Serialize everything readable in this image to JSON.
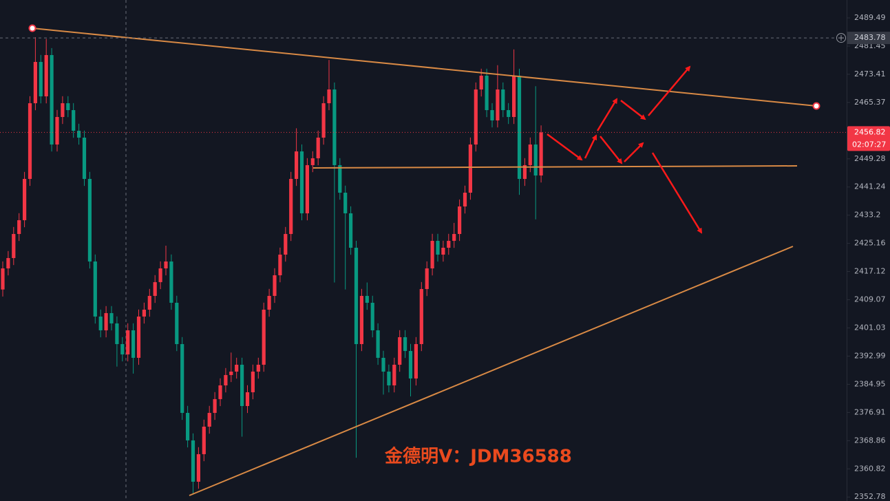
{
  "chart_data": {
    "type": "candlestick",
    "ylim": [
      2351.65,
      2494.6
    ],
    "yticks": [
      2489.49,
      2481.45,
      2473.41,
      2465.37,
      2449.28,
      2441.24,
      2433.2,
      2425.16,
      2417.12,
      2409.07,
      2401.03,
      2392.99,
      2384.95,
      2376.91,
      2368.86,
      2360.82,
      2352.78
    ],
    "grid": false,
    "up_color": "#f23645",
    "down_color": "#089981",
    "last_price": 2456.82,
    "countdown": "02:07:27",
    "crosshair_price": 2483.78,
    "watermark": "金德明V：JDM36588",
    "series": {
      "open": [
        2412.0,
        2418.02,
        2420.97,
        2427.84,
        2431.77,
        2443.55,
        2465.15,
        2476.93,
        2467.11,
        2478.89,
        2453.37,
        2461.22,
        2465.15,
        2463.18,
        2457.29,
        2455.33,
        2443.55,
        2419.99,
        2404.28,
        2400.35,
        2405.26,
        2402.32,
        2396.42,
        2393.48,
        2400.35,
        2392.5,
        2404.28,
        2406.24,
        2410.17,
        2414.1,
        2418.02,
        2419.99,
        2408.21,
        2396.42,
        2376.79,
        2368.94,
        2357.15,
        2365.01,
        2372.86,
        2376.79,
        2380.72,
        2384.64,
        2387.59,
        2388.57,
        2390.53,
        2378.75,
        2382.68,
        2388.57,
        2390.53,
        2406.24,
        2410.17,
        2416.06,
        2421.95,
        2427.84,
        2443.55,
        2451.4,
        2433.73,
        2447.48,
        2449.44,
        2455.33,
        2465.15,
        2469.07,
        2447.48,
        2439.62,
        2433.73,
        2423.91,
        2396.42,
        2410.17,
        2408.21,
        2400.35,
        2392.5,
        2388.57,
        2384.64,
        2390.53,
        2398.39,
        2394.46,
        2386.61,
        2396.42,
        2412.13,
        2418.02,
        2425.88,
        2421.95,
        2423.91,
        2425.88,
        2427.84,
        2435.69,
        2439.62,
        2453.37,
        2469.07,
        2473.0,
        2463.18,
        2460.24,
        2469.07,
        2463.18,
        2461.22,
        2473.0,
        2443.55,
        2447.48,
        2453.37,
        2444.53
      ],
      "high": [
        2420.02,
        2422.97,
        2429.84,
        2433.77,
        2445.55,
        2467.15,
        2484.0,
        2478.93,
        2483.5,
        2480.89,
        2463.22,
        2467.15,
        2467.15,
        2465.18,
        2459.29,
        2457.33,
        2445.55,
        2421.99,
        2406.28,
        2407.26,
        2407.26,
        2404.32,
        2398.42,
        2402.35,
        2402.35,
        2406.28,
        2408.24,
        2412.17,
        2416.1,
        2420.02,
        2424.5,
        2421.99,
        2410.21,
        2398.42,
        2378.79,
        2370.94,
        2367.01,
        2374.86,
        2378.79,
        2382.72,
        2386.64,
        2389.59,
        2394.0,
        2392.53,
        2392.53,
        2384.68,
        2390.57,
        2392.53,
        2408.24,
        2412.17,
        2418.06,
        2423.95,
        2429.84,
        2445.55,
        2458.0,
        2453.4,
        2449.48,
        2451.44,
        2457.33,
        2467.15,
        2477.5,
        2471.07,
        2449.48,
        2441.62,
        2435.73,
        2425.91,
        2412.17,
        2414.0,
        2410.21,
        2402.35,
        2394.5,
        2390.57,
        2392.53,
        2400.39,
        2400.39,
        2396.46,
        2398.42,
        2414.13,
        2420.02,
        2427.88,
        2427.88,
        2425.91,
        2427.88,
        2431.0,
        2437.69,
        2441.62,
        2455.37,
        2471.07,
        2475.0,
        2475.0,
        2465.18,
        2476.0,
        2471.07,
        2465.18,
        2480.5,
        2475.0,
        2449.48,
        2455.37,
        2470.0,
        2458.82
      ],
      "low": [
        2410.0,
        2416.02,
        2418.97,
        2425.84,
        2429.77,
        2441.55,
        2463.15,
        2465.11,
        2465.11,
        2451.37,
        2451.37,
        2459.22,
        2461.18,
        2455.29,
        2453.33,
        2441.55,
        2417.99,
        2402.28,
        2398.35,
        2398.35,
        2400.32,
        2390.0,
        2391.48,
        2391.48,
        2388.0,
        2390.5,
        2402.28,
        2404.24,
        2408.17,
        2412.1,
        2416.02,
        2406.21,
        2394.42,
        2374.79,
        2366.94,
        2353.5,
        2355.15,
        2363.01,
        2370.86,
        2374.79,
        2378.72,
        2382.64,
        2385.59,
        2386.57,
        2370.0,
        2376.75,
        2380.68,
        2386.57,
        2388.53,
        2404.24,
        2408.17,
        2414.06,
        2419.95,
        2425.84,
        2441.55,
        2431.73,
        2431.73,
        2445.48,
        2447.44,
        2453.33,
        2463.15,
        2414.0,
        2437.62,
        2412.0,
        2421.91,
        2364.0,
        2394.42,
        2406.21,
        2398.35,
        2390.5,
        2382.0,
        2382.64,
        2382.64,
        2388.53,
        2392.46,
        2381.5,
        2384.61,
        2394.42,
        2410.13,
        2416.02,
        2419.95,
        2419.95,
        2421.91,
        2423.88,
        2425.84,
        2433.69,
        2437.62,
        2451.37,
        2467.07,
        2461.18,
        2458.24,
        2458.24,
        2461.18,
        2459.22,
        2459.22,
        2439.0,
        2441.55,
        2445.48,
        2432.0,
        2442.53
      ],
      "close": [
        2418.02,
        2420.97,
        2427.84,
        2431.77,
        2443.55,
        2465.15,
        2476.93,
        2467.11,
        2478.89,
        2453.37,
        2461.22,
        2465.15,
        2463.18,
        2457.29,
        2455.33,
        2443.55,
        2419.99,
        2404.28,
        2400.35,
        2405.26,
        2402.32,
        2396.42,
        2393.48,
        2400.35,
        2392.5,
        2404.28,
        2406.24,
        2410.17,
        2414.1,
        2418.02,
        2419.99,
        2408.21,
        2396.42,
        2376.79,
        2368.94,
        2357.15,
        2365.01,
        2372.86,
        2376.79,
        2380.72,
        2384.64,
        2387.59,
        2388.57,
        2390.53,
        2378.75,
        2382.68,
        2388.57,
        2390.53,
        2406.24,
        2410.17,
        2416.06,
        2421.95,
        2427.84,
        2443.55,
        2451.4,
        2433.73,
        2447.48,
        2449.44,
        2455.33,
        2465.15,
        2469.07,
        2447.48,
        2439.62,
        2433.73,
        2423.91,
        2396.42,
        2410.17,
        2408.21,
        2400.35,
        2392.5,
        2388.57,
        2384.64,
        2390.53,
        2398.39,
        2394.46,
        2386.61,
        2396.42,
        2412.13,
        2418.02,
        2425.88,
        2421.95,
        2423.91,
        2425.88,
        2427.84,
        2435.69,
        2439.62,
        2453.37,
        2469.07,
        2473.0,
        2463.18,
        2460.24,
        2469.07,
        2463.18,
        2461.22,
        2473.0,
        2443.55,
        2447.48,
        2453.37,
        2444.53,
        2456.82
      ]
    }
  }
}
